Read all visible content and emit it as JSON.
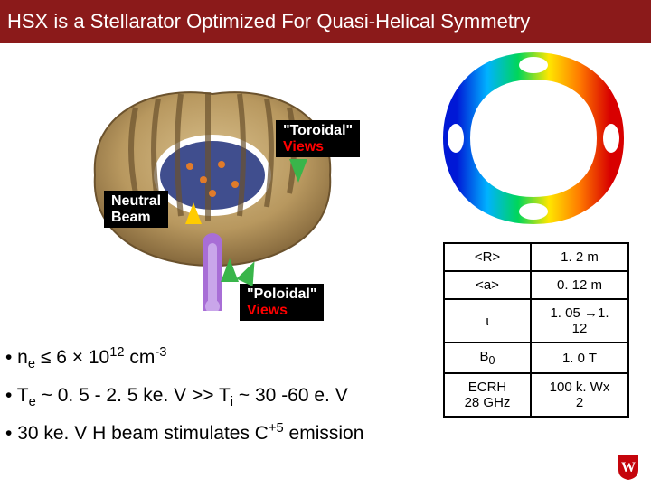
{
  "title": "HSX is a Stellarator Optimized For Quasi-Helical Symmetry",
  "title_bg": "#8b1a1a",
  "title_fg": "#ffffff",
  "labels": {
    "toroidal_l1": "\"Toroidal\"",
    "toroidal_l2": "Views",
    "neutral_l1": "Neutral",
    "neutral_l2": "Beam",
    "poloidal_l1": "\"Poloidal\"",
    "poloidal_l2": "Views"
  },
  "bullets": {
    "b1_pre": "• n",
    "b1_sub1": "e",
    "b1_mid": " ≤ 6 × 10",
    "b1_sup1": "12",
    "b1_mid2": " cm",
    "b1_sup2": "-3",
    "b2_pre": "• T",
    "b2_sub1": "e",
    "b2_mid": " ~ 0. 5 - 2. 5 ke. V   >>   T",
    "b2_sub2": "i",
    "b2_end": " ~ 30 -60 e. V",
    "b3_pre": "• 30 ke. V  H beam stimulates C",
    "b3_sup": "+5",
    "b3_end": " emission"
  },
  "table": {
    "rows": [
      {
        "key": "<R>",
        "val": "1. 2 m"
      },
      {
        "key": "<a>",
        "val": "0. 12 m"
      },
      {
        "key": "ι",
        "val": "1. 05 →1. 12"
      },
      {
        "key_html": "B<sub>0</sub>",
        "val": "1. 0 T"
      },
      {
        "key_html": "ECRH<br>28 GHz",
        "val": "100 k. Wx 2"
      }
    ],
    "border_color": "#000000",
    "font_size": 15
  },
  "stellarator": {
    "body_color": "#b8985f",
    "interior_color": "#1f2f7a",
    "beamline_color": "#a86ed6",
    "detail_color": "#8a6a3f"
  },
  "fieldmap": {
    "rainbow": [
      "#0018d6",
      "#00b2ff",
      "#00d65a",
      "#ffe600",
      "#ff7a00",
      "#d80000"
    ],
    "bg": "#ffffff"
  },
  "logo": {
    "shield_color": "#c5050c",
    "letter_color": "#ffffff"
  }
}
